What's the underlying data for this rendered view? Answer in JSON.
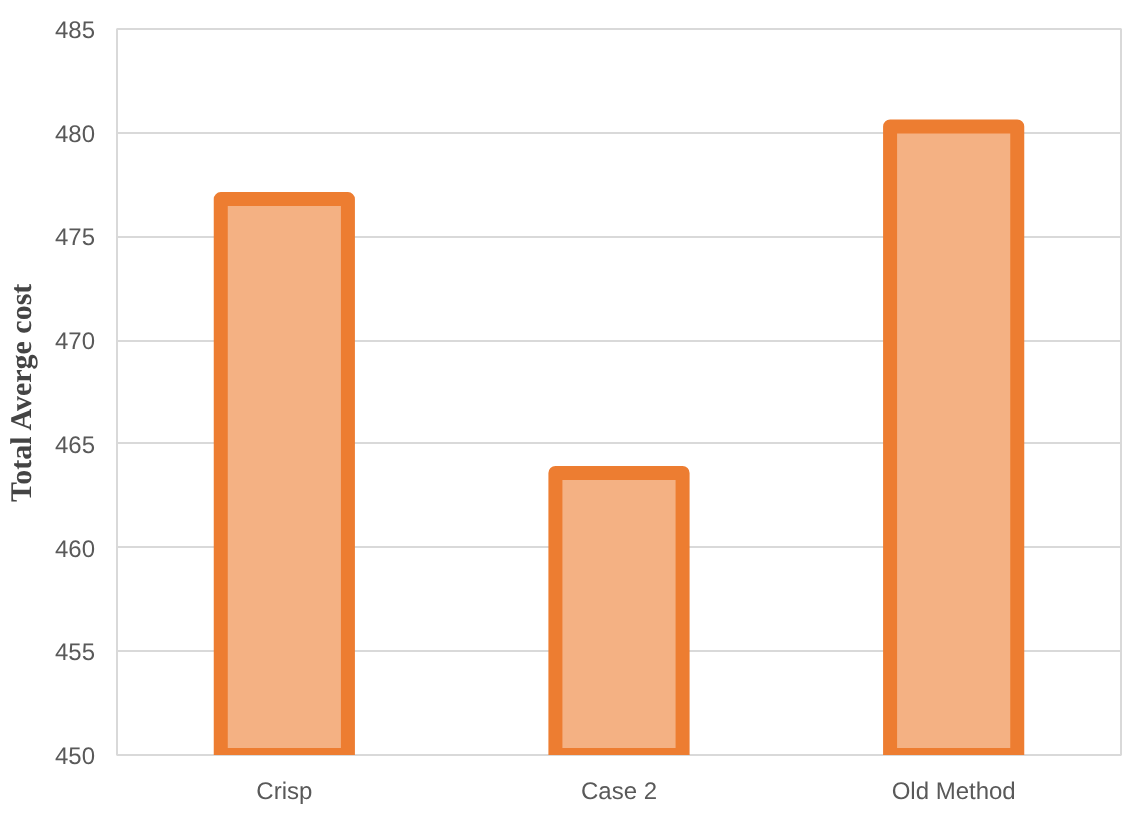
{
  "chart_data": {
    "type": "bar",
    "ylabel": "Total Averge cost",
    "categories": [
      "Crisp",
      "Case 2",
      "Old Method"
    ],
    "values": [
      476.8,
      463.6,
      480.3
    ],
    "color": "#f4b183",
    "ylim": [
      450,
      485
    ],
    "yticks": [
      450,
      455,
      460,
      465,
      470,
      475,
      480,
      485
    ],
    "grid": "y"
  }
}
